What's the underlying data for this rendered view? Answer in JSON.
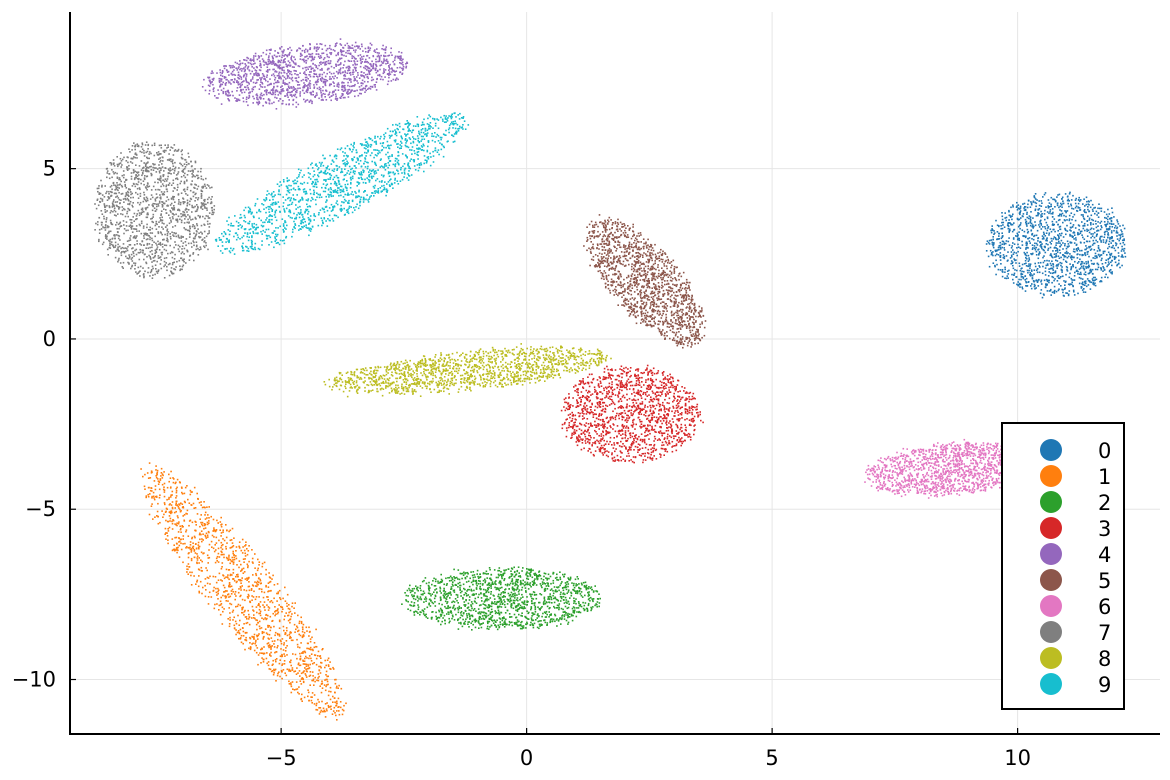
{
  "chart_data": {
    "type": "scatter",
    "title": "",
    "xlabel": "",
    "ylabel": "",
    "xlim": [
      -9.3,
      12.9
    ],
    "ylim": [
      -11.6,
      9.6
    ],
    "grid": true,
    "legend_position": "bottom-right",
    "x_ticks": [
      {
        "value": -5,
        "label": "−5"
      },
      {
        "value": 0,
        "label": "0"
      },
      {
        "value": 5,
        "label": "5"
      },
      {
        "value": 10,
        "label": "10"
      }
    ],
    "y_ticks": [
      {
        "value": 5,
        "label": "5"
      },
      {
        "value": 0,
        "label": "0"
      },
      {
        "value": -5,
        "label": "−5"
      },
      {
        "value": -10,
        "label": "−10"
      }
    ],
    "series": [
      {
        "name": "0",
        "color": "#1f77b4",
        "cluster": {
          "cx": 10.8,
          "cy": 2.8,
          "rx": 1.4,
          "ry": 1.5,
          "rot": 0
        }
      },
      {
        "name": "1",
        "color": "#ff7f0e",
        "cluster": {
          "cx": -5.8,
          "cy": -7.4,
          "rx": 4.2,
          "ry": 0.75,
          "rot": -62
        }
      },
      {
        "name": "2",
        "color": "#2ca02c",
        "cluster": {
          "cx": -0.5,
          "cy": -7.6,
          "rx": 2.0,
          "ry": 0.9,
          "rot": 0
        }
      },
      {
        "name": "3",
        "color": "#d62728",
        "cluster": {
          "cx": 2.1,
          "cy": -2.2,
          "rx": 1.4,
          "ry": 1.4,
          "rot": 0
        }
      },
      {
        "name": "4",
        "color": "#9467bd",
        "cluster": {
          "cx": -4.5,
          "cy": 7.8,
          "rx": 2.1,
          "ry": 0.85,
          "rot": 10
        }
      },
      {
        "name": "5",
        "color": "#8c564b",
        "cluster": {
          "cx": 2.4,
          "cy": 1.7,
          "rx": 2.1,
          "ry": 0.75,
          "rot": -62
        }
      },
      {
        "name": "6",
        "color": "#e377c2",
        "cluster": {
          "cx": 8.6,
          "cy": -3.8,
          "rx": 1.7,
          "ry": 0.75,
          "rot": 8
        }
      },
      {
        "name": "7",
        "color": "#7f7f7f",
        "cluster": {
          "cx": -7.6,
          "cy": 3.8,
          "rx": 1.2,
          "ry": 2.0,
          "rot": 0
        }
      },
      {
        "name": "8",
        "color": "#bcbd22",
        "cluster": {
          "cx": -1.2,
          "cy": -0.9,
          "rx": 2.9,
          "ry": 0.55,
          "rot": 8
        }
      },
      {
        "name": "9",
        "color": "#17becf",
        "cluster": {
          "cx": -3.8,
          "cy": 4.6,
          "rx": 3.2,
          "ry": 0.8,
          "rot": 38
        }
      }
    ]
  }
}
